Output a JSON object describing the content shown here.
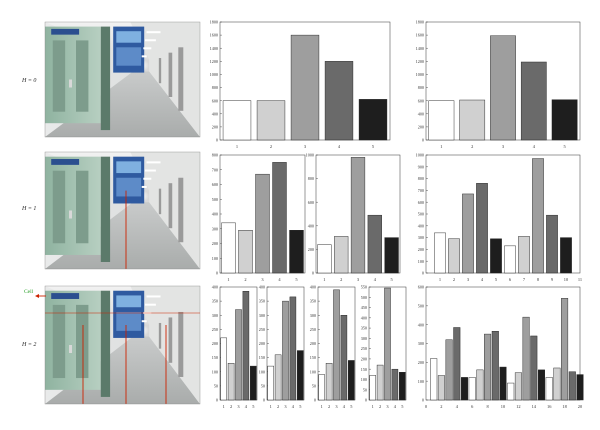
{
  "figure": {
    "rows": [
      {
        "label": "H = 0"
      },
      {
        "label": "H = 1"
      },
      {
        "label": "H = 2"
      }
    ],
    "cell_label": "Cell",
    "grays": [
      "#ffffff",
      "#d2d2d2",
      "#a0a0a0",
      "#686868",
      "#202020"
    ],
    "accent": "#cc2200",
    "cell_color": "#2aa02a"
  },
  "chart_data": [
    {
      "type": "bar",
      "row": 0,
      "x": [
        1,
        2,
        3,
        4,
        5
      ],
      "values": [
        600,
        600,
        1600,
        1200,
        620
      ],
      "ylim": [
        0,
        1800
      ],
      "yticks": [
        0,
        200,
        400,
        600,
        800,
        1000,
        1200,
        1400,
        1600,
        1800
      ],
      "xticks": [
        1,
        2,
        3,
        4,
        5
      ]
    },
    {
      "type": "bar",
      "row": 0,
      "x": [
        1,
        2,
        3,
        4,
        5
      ],
      "values": [
        600,
        610,
        1590,
        1190,
        615
      ],
      "ylim": [
        0,
        1800
      ],
      "yticks": [
        0,
        200,
        400,
        600,
        800,
        1000,
        1200,
        1400,
        1600,
        1800
      ],
      "xticks": [
        1,
        2,
        3,
        4,
        5
      ]
    },
    {
      "type": "bar",
      "row": 1,
      "x": [
        1,
        2,
        3,
        4,
        5
      ],
      "values": [
        340,
        290,
        670,
        750,
        290
      ],
      "ylim": [
        0,
        800
      ],
      "yticks": [
        0,
        100,
        200,
        300,
        400,
        500,
        600,
        700,
        800
      ],
      "xticks": [
        1,
        2,
        3,
        4,
        5
      ]
    },
    {
      "type": "bar",
      "row": 1,
      "x": [
        1,
        2,
        3,
        4,
        5
      ],
      "values": [
        240,
        310,
        980,
        490,
        300
      ],
      "ylim": [
        0,
        1000
      ],
      "yticks": [
        0,
        200,
        400,
        600,
        800,
        1000
      ],
      "xticks": [
        1,
        2,
        3,
        4,
        5
      ]
    },
    {
      "type": "bar",
      "row": 1,
      "x": [
        1,
        2,
        3,
        4,
        5,
        6,
        7,
        8,
        9,
        10
      ],
      "values": [
        340,
        290,
        670,
        760,
        290,
        230,
        310,
        970,
        490,
        300
      ],
      "ylim": [
        0,
        1000
      ],
      "xlim": [
        0,
        11
      ],
      "yticks": [
        0,
        100,
        200,
        300,
        400,
        500,
        600,
        700,
        800,
        900,
        1000
      ],
      "xticks": [
        1,
        2,
        3,
        4,
        5,
        6,
        7,
        8,
        9,
        10,
        11
      ]
    },
    {
      "type": "bar",
      "row": 2,
      "x": [
        1,
        2,
        3,
        4,
        5
      ],
      "values": [
        220,
        130,
        320,
        385,
        120
      ],
      "ylim": [
        0,
        400
      ],
      "yticks": [
        0,
        50,
        100,
        150,
        200,
        250,
        300,
        350,
        400
      ],
      "xticks": [
        1,
        2,
        3,
        4,
        5
      ]
    },
    {
      "type": "bar",
      "row": 2,
      "x": [
        1,
        2,
        3,
        4,
        5
      ],
      "values": [
        120,
        160,
        350,
        365,
        175
      ],
      "ylim": [
        0,
        400
      ],
      "yticks": [
        0,
        50,
        100,
        150,
        200,
        250,
        300,
        350,
        400
      ],
      "xticks": [
        1,
        2,
        3,
        4,
        5
      ]
    },
    {
      "type": "bar",
      "row": 2,
      "x": [
        1,
        2,
        3,
        4,
        5
      ],
      "values": [
        90,
        130,
        390,
        300,
        140
      ],
      "ylim": [
        0,
        400
      ],
      "yticks": [
        0,
        50,
        100,
        150,
        200,
        250,
        300,
        350,
        400
      ],
      "xticks": [
        1,
        2,
        3,
        4,
        5
      ]
    },
    {
      "type": "bar",
      "row": 2,
      "x": [
        1,
        2,
        3,
        4,
        5
      ],
      "values": [
        120,
        170,
        545,
        150,
        135
      ],
      "ylim": [
        0,
        550
      ],
      "yticks": [
        0,
        50,
        100,
        150,
        200,
        250,
        300,
        350,
        400,
        450,
        500,
        550
      ],
      "xticks": [
        1,
        2,
        3,
        4,
        5
      ]
    },
    {
      "type": "bar",
      "row": 2,
      "x": [
        1,
        2,
        3,
        4,
        5,
        6,
        7,
        8,
        9,
        10,
        11,
        12,
        13,
        14,
        15,
        16,
        17,
        18,
        19,
        20
      ],
      "values": [
        220,
        130,
        320,
        385,
        120,
        120,
        160,
        350,
        365,
        175,
        90,
        145,
        440,
        340,
        160,
        120,
        170,
        540,
        150,
        135
      ],
      "ylim": [
        0,
        600
      ],
      "xlim": [
        0,
        20
      ],
      "yticks": [
        0,
        100,
        200,
        300,
        400,
        500,
        600
      ],
      "xticks": [
        0,
        2,
        4,
        6,
        8,
        10,
        12,
        14,
        16,
        18,
        20
      ]
    }
  ]
}
